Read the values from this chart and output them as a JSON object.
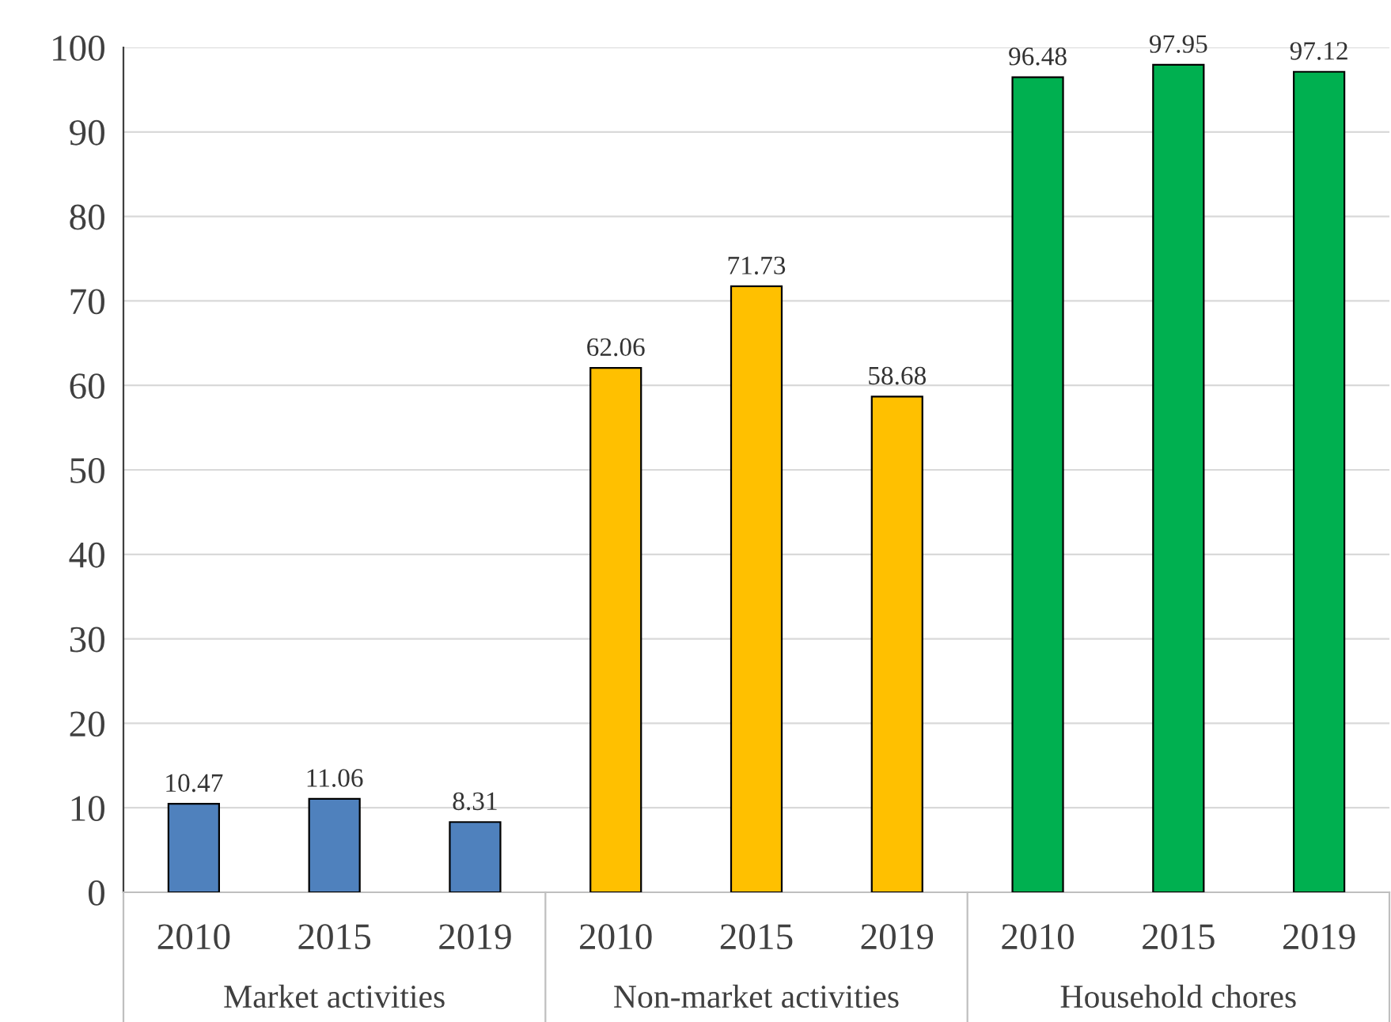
{
  "chart_data": {
    "type": "bar",
    "categories": [
      "2010",
      "2015",
      "2019",
      "2010",
      "2015",
      "2019",
      "2010",
      "2015",
      "2019"
    ],
    "series": [
      {
        "name": "Market activities",
        "color": "#4f81bd",
        "values": [
          10.47,
          11.06,
          8.31,
          null,
          null,
          null,
          null,
          null,
          null
        ]
      },
      {
        "name": "Non-market activities",
        "color": "#ffc000",
        "values": [
          null,
          null,
          null,
          62.06,
          71.73,
          58.68,
          null,
          null,
          null
        ]
      },
      {
        "name": "Household chores",
        "color": "#00b050",
        "values": [
          null,
          null,
          null,
          null,
          null,
          null,
          96.48,
          97.95,
          97.12
        ]
      }
    ],
    "ylim": [
      0,
      100
    ],
    "yticks": [
      0,
      10,
      20,
      30,
      40,
      50,
      60,
      70,
      80,
      90,
      100
    ],
    "grid": "y",
    "data_labels": true,
    "legend": false
  }
}
